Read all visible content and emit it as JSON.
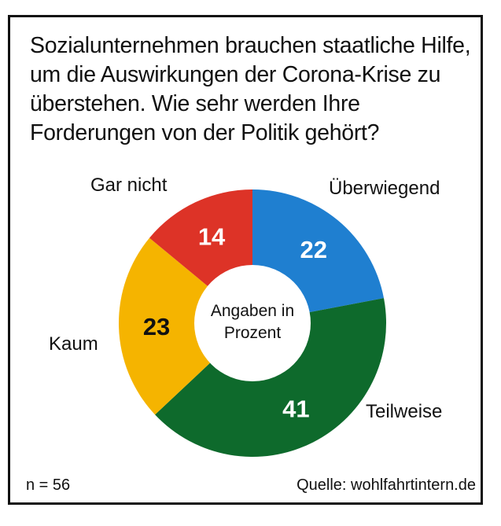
{
  "chart_data": {
    "type": "pie",
    "variant": "donut",
    "title": "Sozialunternehmen brauchen staatliche Hilfe, um die Auswirkungen der Corona-Krise zu überstehen. Wie sehr werden Ihre Forderungen von der Politik gehört?",
    "center_label_line1": "Angaben in",
    "center_label_line2": "Prozent",
    "slices": [
      {
        "label": "Überwiegend",
        "value": 22,
        "display": "22",
        "color": "#1f7fd0",
        "value_color": "#ffffff"
      },
      {
        "label": "Teilweise",
        "value": 41,
        "display": "41",
        "color": "#0e6a2c",
        "value_color": "#ffffff"
      },
      {
        "label": "Kaum",
        "value": 23,
        "display": "23",
        "color": "#f5b400",
        "value_color": "#111111"
      },
      {
        "label": "Gar nicht",
        "value": 14,
        "display": "14",
        "color": "#dd3327",
        "value_color": "#ffffff"
      }
    ],
    "unit": "Prozent"
  },
  "footer": {
    "sample": "n = 56",
    "source": "Quelle: wohlfahrtintern.de"
  }
}
